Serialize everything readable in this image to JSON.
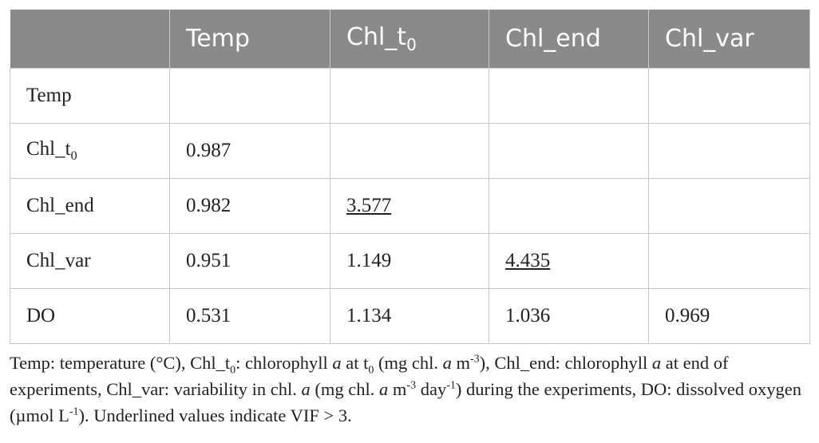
{
  "table": {
    "columns": [
      {
        "text": "Temp"
      },
      {
        "text": "Chl_t",
        "sub": "0"
      },
      {
        "text": "Chl_end"
      },
      {
        "text": "Chl_var"
      }
    ],
    "rows": [
      {
        "label": {
          "text": "Temp"
        },
        "cells": []
      },
      {
        "label": {
          "text": "Chl_t",
          "sub": "0"
        },
        "cells": [
          {
            "text": "0.987"
          }
        ]
      },
      {
        "label": {
          "text": "Chl_end"
        },
        "cells": [
          {
            "text": "0.982"
          },
          {
            "text": "3.577",
            "underline": true
          }
        ]
      },
      {
        "label": {
          "text": "Chl_var"
        },
        "cells": [
          {
            "text": "0.951"
          },
          {
            "text": "1.149"
          },
          {
            "text": "4.435",
            "underline": true
          }
        ]
      },
      {
        "label": {
          "text": "DO"
        },
        "cells": [
          {
            "text": "0.531"
          },
          {
            "text": "1.134"
          },
          {
            "text": "1.036"
          },
          {
            "text": "0.969"
          }
        ]
      }
    ]
  },
  "footnote": [
    {
      "text": "Temp: temperature (°C), Chl_t"
    },
    {
      "text": "0",
      "style": "sub"
    },
    {
      "text": ": chlorophyll "
    },
    {
      "text": "a",
      "style": "italic"
    },
    {
      "text": " at t"
    },
    {
      "text": "0",
      "style": "sub"
    },
    {
      "text": " (mg chl. "
    },
    {
      "text": "a",
      "style": "italic"
    },
    {
      "text": " m"
    },
    {
      "text": "-3",
      "style": "sup"
    },
    {
      "text": "), Chl_end: chlorophyll "
    },
    {
      "text": "a",
      "style": "italic"
    },
    {
      "text": " at end of experiments, Chl_var: variability in chl. "
    },
    {
      "text": "a",
      "style": "italic"
    },
    {
      "text": " (mg chl. "
    },
    {
      "text": "a",
      "style": "italic"
    },
    {
      "text": " m"
    },
    {
      "text": "-3",
      "style": "sup"
    },
    {
      "text": " day"
    },
    {
      "text": "-1",
      "style": "sup"
    },
    {
      "text": ") during the experiments, DO: dissolved oxygen (µmol L"
    },
    {
      "text": "-1",
      "style": "sup"
    },
    {
      "text": "). Underlined values indicate VIF > 3."
    }
  ]
}
